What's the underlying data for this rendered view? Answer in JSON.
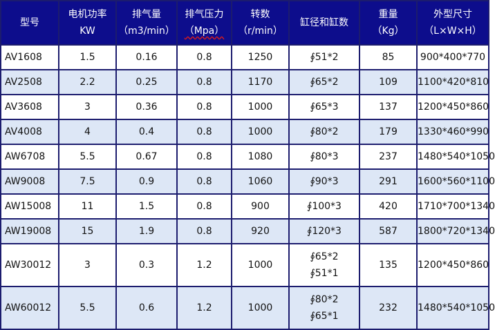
{
  "table": {
    "headers": [
      {
        "line1": "型号",
        "line2": ""
      },
      {
        "line1": "电机功率",
        "line2": "KW"
      },
      {
        "line1": "排气量",
        "line2": "（m3/min）"
      },
      {
        "line1": "排气压力",
        "line2": "（Mpa）"
      },
      {
        "line1": "转数",
        "line2": "（r/min）"
      },
      {
        "line1": "缸径和缸数",
        "line2": ""
      },
      {
        "line1": "重量",
        "line2": "（Kg）"
      },
      {
        "line1": "外型尺寸",
        "line2": "（L×W×H）"
      }
    ],
    "rows": [
      {
        "model": "AV1608",
        "power": "1.5",
        "displacement": "0.16",
        "pressure": "0.8",
        "speed": "1250",
        "cyl1": "∮51*2",
        "cyl2": "",
        "weight": "85",
        "size": "900*400*770"
      },
      {
        "model": "AV2508",
        "power": "2.2",
        "displacement": "0.25",
        "pressure": "0.8",
        "speed": "1170",
        "cyl1": "∮65*2",
        "cyl2": "",
        "weight": "109",
        "size": "1100*420*810"
      },
      {
        "model": "AV3608",
        "power": "3",
        "displacement": "0.36",
        "pressure": "0.8",
        "speed": "1000",
        "cyl1": "∮65*3",
        "cyl2": "",
        "weight": "137",
        "size": "1200*450*860"
      },
      {
        "model": "AV4008",
        "power": "4",
        "displacement": "0.4",
        "pressure": "0.8",
        "speed": "1000",
        "cyl1": "∮80*2",
        "cyl2": "",
        "weight": "179",
        "size": "1330*460*990"
      },
      {
        "model": "AW6708",
        "power": "5.5",
        "displacement": "0.67",
        "pressure": "0.8",
        "speed": "1080",
        "cyl1": "∮80*3",
        "cyl2": "",
        "weight": "237",
        "size": "1480*540*1050"
      },
      {
        "model": "AW9008",
        "power": "7.5",
        "displacement": "0.9",
        "pressure": "0.8",
        "speed": "1060",
        "cyl1": "∮90*3",
        "cyl2": "",
        "weight": "291",
        "size": "1600*560*1100"
      },
      {
        "model": "AW15008",
        "power": "11",
        "displacement": "1.5",
        "pressure": "0.8",
        "speed": "900",
        "cyl1": "∮100*3",
        "cyl2": "",
        "weight": "420",
        "size": "1710*700*1340"
      },
      {
        "model": "AW19008",
        "power": "15",
        "displacement": "1.9",
        "pressure": "0.8",
        "speed": "920",
        "cyl1": "∮120*3",
        "cyl2": "",
        "weight": "587",
        "size": "1800*720*1340"
      },
      {
        "model": "AW30012",
        "power": "3",
        "displacement": "0.3",
        "pressure": "1.2",
        "speed": "1000",
        "cyl1": "∮65*2",
        "cyl2": "∮51*1",
        "weight": "135",
        "size": "1200*450*860"
      },
      {
        "model": "AW60012",
        "power": "5.5",
        "displacement": "0.6",
        "pressure": "1.2",
        "speed": "1000",
        "cyl1": "∮80*2",
        "cyl2": "∮65*1",
        "weight": "232",
        "size": "1480*540*1050"
      }
    ]
  },
  "colors": {
    "header_bg": "#0d0d8c",
    "header_text": "#ffffff",
    "alt_row_bg": "#dde7f6",
    "border": "#1c1c6e"
  }
}
